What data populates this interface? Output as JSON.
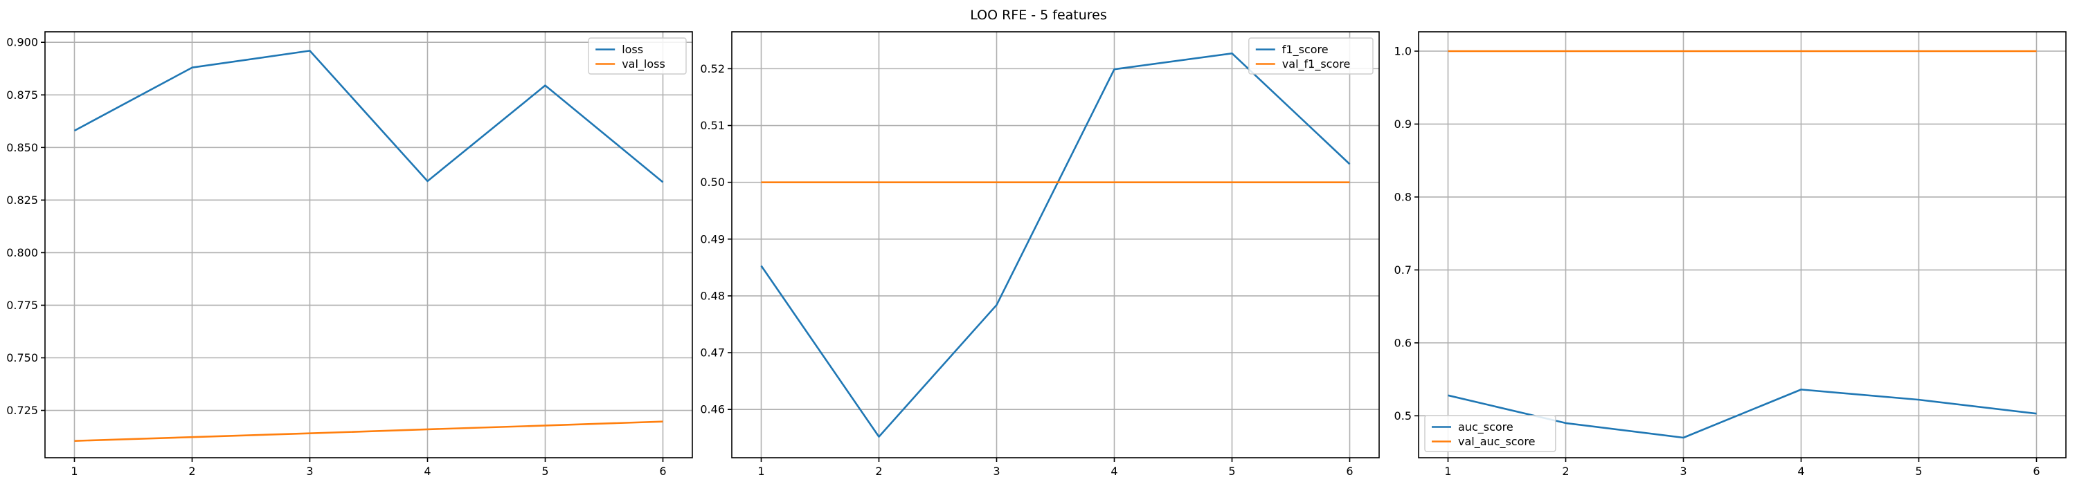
{
  "figure_title": "LOO RFE - 5 features",
  "colors": {
    "series_1": "#1f77b4",
    "series_2": "#ff7f0e",
    "grid": "#b0b0b0"
  },
  "chart_data": [
    {
      "type": "line",
      "x": [
        1,
        2,
        3,
        4,
        5,
        6
      ],
      "xticks": [
        1,
        2,
        3,
        4,
        5,
        6
      ],
      "ylim": [
        0.7025,
        0.905
      ],
      "yticks": [
        0.725,
        0.75,
        0.775,
        0.8,
        0.825,
        0.85,
        0.875,
        0.9
      ],
      "ytick_labels": [
        "0.725",
        "0.750",
        "0.775",
        "0.800",
        "0.825",
        "0.850",
        "0.875",
        "0.900"
      ],
      "grid": true,
      "legend": "upper right",
      "series": [
        {
          "name": "loss",
          "color": "#1f77b4",
          "values": [
            0.858,
            0.888,
            0.896,
            0.834,
            0.8795,
            0.8335
          ]
        },
        {
          "name": "val_loss",
          "color": "#ff7f0e",
          "values": [
            0.7105,
            0.7123,
            0.7141,
            0.716,
            0.7178,
            0.7197
          ]
        }
      ]
    },
    {
      "type": "line",
      "x": [
        1,
        2,
        3,
        4,
        5,
        6
      ],
      "xticks": [
        1,
        2,
        3,
        4,
        5,
        6
      ],
      "ylim": [
        0.4515,
        0.5265
      ],
      "yticks": [
        0.46,
        0.47,
        0.48,
        0.49,
        0.5,
        0.51,
        0.52
      ],
      "ytick_labels": [
        "0.46",
        "0.47",
        "0.48",
        "0.49",
        "0.50",
        "0.51",
        "0.52"
      ],
      "grid": true,
      "legend": "upper right",
      "series": [
        {
          "name": "f1_score",
          "color": "#1f77b4",
          "values": [
            0.4853,
            0.4552,
            0.4784,
            0.5199,
            0.5227,
            0.5032
          ]
        },
        {
          "name": "val_f1_score",
          "color": "#ff7f0e",
          "values": [
            0.5,
            0.5,
            0.5,
            0.5,
            0.5,
            0.5
          ]
        }
      ]
    },
    {
      "type": "line",
      "x": [
        1,
        2,
        3,
        4,
        5,
        6
      ],
      "xticks": [
        1,
        2,
        3,
        4,
        5,
        6
      ],
      "ylim": [
        0.4425,
        1.0265
      ],
      "yticks": [
        0.5,
        0.6,
        0.7,
        0.8,
        0.9,
        1.0
      ],
      "ytick_labels": [
        "0.5",
        "0.6",
        "0.7",
        "0.8",
        "0.9",
        "1.0"
      ],
      "grid": true,
      "legend": "lower left",
      "series": [
        {
          "name": "auc_score",
          "color": "#1f77b4",
          "values": [
            0.528,
            0.49,
            0.47,
            0.536,
            0.522,
            0.503
          ]
        },
        {
          "name": "val_auc_score",
          "color": "#ff7f0e",
          "values": [
            1.0,
            1.0,
            1.0,
            1.0,
            1.0,
            1.0
          ]
        }
      ]
    }
  ]
}
